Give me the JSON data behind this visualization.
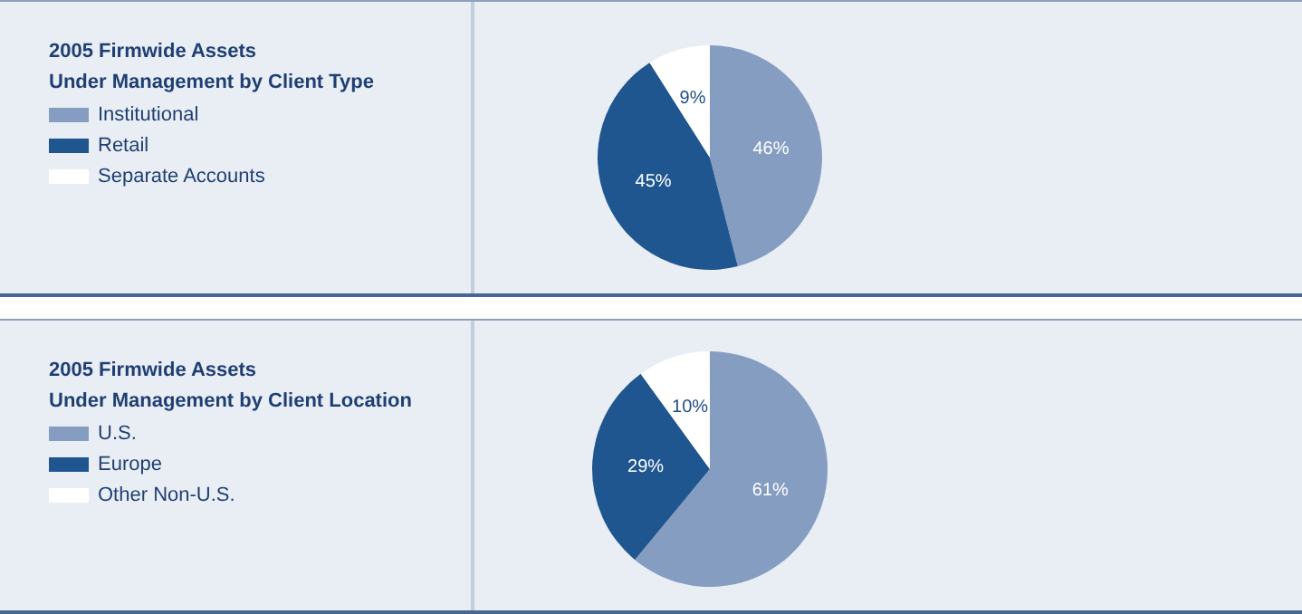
{
  "chart_data": [
    {
      "type": "pie",
      "title": "2005 Firmwide Assets\nUnder Management by Client Type",
      "categories": [
        "Institutional",
        "Retail",
        "Separate Accounts"
      ],
      "values": [
        46,
        45,
        9
      ],
      "colors": [
        "#869dc2",
        "#1f5690",
        "#ffffff"
      ],
      "value_labels": [
        "46%",
        "45%",
        "9%"
      ],
      "legend": "top left"
    },
    {
      "type": "pie",
      "title": "2005 Firmwide Assets\nUnder Management by Client Location",
      "categories": [
        "U.S.",
        "Europe",
        "Other Non-U.S."
      ],
      "values": [
        61,
        29,
        10
      ],
      "colors": [
        "#869dc2",
        "#1f5690",
        "#ffffff"
      ],
      "value_labels": [
        "61%",
        "29%",
        "10%"
      ],
      "legend": "top left"
    }
  ]
}
